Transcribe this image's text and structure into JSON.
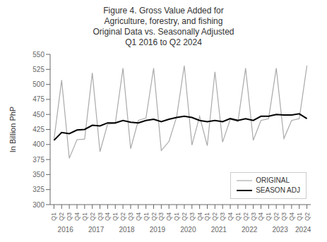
{
  "chart_data": {
    "type": "line",
    "title": "Figure 4. Gross Value Added for\nAgriculture, forestry, and fishing\nOriginal Data vs. Seasonally Adjusted\nQ1 2016 to Q2 2024",
    "ylabel": "In Billion PhP",
    "categories": [
      "Q1",
      "Q2",
      "Q3",
      "Q4",
      "Q1",
      "Q2",
      "Q3",
      "Q4",
      "Q1",
      "Q2",
      "Q3",
      "Q4",
      "Q1",
      "Q2",
      "Q3",
      "Q4",
      "Q1",
      "Q2",
      "Q3",
      "Q4",
      "Q1",
      "Q2",
      "Q3",
      "Q4",
      "Q1",
      "Q2",
      "Q3",
      "Q4",
      "Q1",
      "Q2",
      "Q3",
      "Q4",
      "Q1",
      "Q2"
    ],
    "annotations": [
      "2016",
      "2017",
      "2018",
      "2019",
      "2020",
      "2021",
      "2022",
      "2023",
      "2024"
    ],
    "series": [
      {
        "name": "ORIGINAL",
        "color": "#aaaaaa",
        "values": [
          408,
          507,
          377,
          408,
          409,
          519,
          388,
          434,
          435,
          527,
          393,
          440,
          444,
          527,
          390,
          405,
          446,
          531,
          399,
          447,
          398,
          521,
          404,
          442,
          438,
          527,
          407,
          440,
          443,
          527,
          410,
          440,
          443,
          531
        ]
      },
      {
        "name": "SEASON ADJ",
        "color": "#000000",
        "values": [
          407,
          420,
          418,
          424,
          425,
          432,
          431,
          436,
          436,
          440,
          437,
          436,
          440,
          442,
          438,
          442,
          445,
          447,
          445,
          440,
          438,
          440,
          438,
          443,
          440,
          443,
          440,
          447,
          447,
          450,
          449,
          449,
          451,
          443
        ]
      }
    ],
    "ylim": [
      300,
      550
    ],
    "yticks": [
      300,
      325,
      350,
      375,
      400,
      425,
      450,
      475,
      500,
      525,
      550
    ],
    "grid": false,
    "legend": "lower right"
  }
}
